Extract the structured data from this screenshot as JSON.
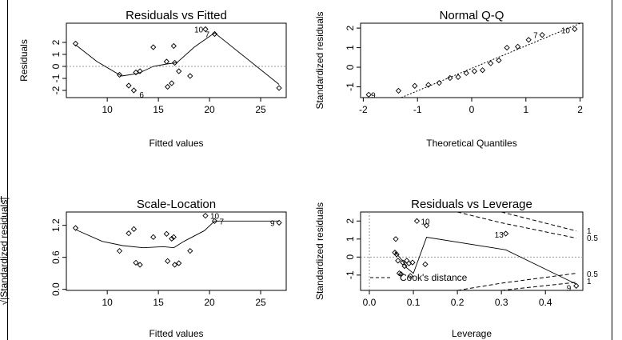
{
  "chart_data": [
    {
      "type": "scatter",
      "title": "Residuals vs Fitted",
      "xlabel": "Fitted values",
      "ylabel": "Residuals",
      "xlim": [
        6,
        27.5
      ],
      "ylim": [
        -2.6,
        3.6
      ],
      "xticks": [
        10,
        15,
        20,
        25
      ],
      "yticks": [
        -2,
        -1,
        0,
        1,
        2
      ],
      "refline_y": 0,
      "points": [
        {
          "x": 6.9,
          "y": 1.9
        },
        {
          "x": 11.2,
          "y": -0.7
        },
        {
          "x": 12.1,
          "y": -1.6
        },
        {
          "x": 12.6,
          "y": -2.0
        },
        {
          "x": 12.8,
          "y": -0.5
        },
        {
          "x": 13.2,
          "y": -0.4
        },
        {
          "x": 14.5,
          "y": 1.6
        },
        {
          "x": 15.8,
          "y": 0.4
        },
        {
          "x": 15.9,
          "y": -1.7
        },
        {
          "x": 16.3,
          "y": -1.4
        },
        {
          "x": 16.5,
          "y": 1.7
        },
        {
          "x": 16.6,
          "y": 0.3
        },
        {
          "x": 17.0,
          "y": -0.4
        },
        {
          "x": 18.1,
          "y": -0.8
        },
        {
          "x": 19.6,
          "y": 3.1
        },
        {
          "x": 20.5,
          "y": 2.7
        },
        {
          "x": 26.8,
          "y": -1.8
        }
      ],
      "smooth": [
        [
          6.9,
          1.8
        ],
        [
          9,
          0.4
        ],
        [
          11.4,
          -0.8
        ],
        [
          13,
          -0.6
        ],
        [
          14.5,
          0.0
        ],
        [
          15.8,
          0.2
        ],
        [
          16.8,
          0.3
        ],
        [
          18.5,
          1.6
        ],
        [
          20.5,
          2.8
        ],
        [
          26.8,
          -1.5
        ]
      ],
      "labels": [
        {
          "text": "10",
          "x": 19.6,
          "y": 3.1,
          "dx": -14,
          "dy": 4
        },
        {
          "text": "7",
          "x": 20.5,
          "y": 2.7,
          "dx": -12,
          "dy": 4
        },
        {
          "text": "6",
          "x": 12.6,
          "y": -2.0,
          "dx": 7,
          "dy": 9
        }
      ]
    },
    {
      "type": "scatter",
      "title": "Normal Q-Q",
      "xlabel": "Theoretical Quantiles",
      "ylabel": "Standardized residuals",
      "xlim": [
        -2.05,
        2.05
      ],
      "ylim": [
        -1.55,
        2.25
      ],
      "xticks": [
        -2,
        -1,
        0,
        1,
        2
      ],
      "yticks": [
        -1,
        0,
        1,
        2
      ],
      "refline": [
        [
          -1.3,
          -1.55
        ],
        [
          2.05,
          2.3
        ]
      ],
      "points": [
        {
          "x": -1.9,
          "y": -1.4
        },
        {
          "x": -1.35,
          "y": -1.2
        },
        {
          "x": -1.05,
          "y": -0.95
        },
        {
          "x": -0.8,
          "y": -0.9
        },
        {
          "x": -0.6,
          "y": -0.8
        },
        {
          "x": -0.4,
          "y": -0.55
        },
        {
          "x": -0.25,
          "y": -0.5
        },
        {
          "x": -0.1,
          "y": -0.3
        },
        {
          "x": 0.05,
          "y": -0.2
        },
        {
          "x": 0.2,
          "y": -0.15
        },
        {
          "x": 0.35,
          "y": 0.2
        },
        {
          "x": 0.5,
          "y": 0.35
        },
        {
          "x": 0.65,
          "y": 1.0
        },
        {
          "x": 0.85,
          "y": 1.05
        },
        {
          "x": 1.05,
          "y": 1.4
        },
        {
          "x": 1.3,
          "y": 1.65
        },
        {
          "x": 1.9,
          "y": 1.95
        }
      ],
      "labels": [
        {
          "text": "9",
          "x": -1.9,
          "y": -1.4,
          "dx": 3,
          "dy": 4
        },
        {
          "text": "7",
          "x": 1.3,
          "y": 1.65,
          "dx": -11,
          "dy": 4
        },
        {
          "text": "10",
          "x": 1.9,
          "y": 1.95,
          "dx": -17,
          "dy": 5
        }
      ]
    },
    {
      "type": "scatter",
      "title": "Scale-Location",
      "xlabel": "Fitted values",
      "ylabel": "√|Standardized residuals|",
      "xlim": [
        6,
        27.5
      ],
      "ylim": [
        -0.02,
        1.45
      ],
      "xticks": [
        10,
        15,
        20,
        25
      ],
      "yticks": [
        0.0,
        0.6,
        1.2
      ],
      "points": [
        {
          "x": 6.9,
          "y": 1.15
        },
        {
          "x": 11.2,
          "y": 0.72
        },
        {
          "x": 12.1,
          "y": 1.05
        },
        {
          "x": 12.6,
          "y": 1.13
        },
        {
          "x": 12.8,
          "y": 0.5
        },
        {
          "x": 13.2,
          "y": 0.46
        },
        {
          "x": 14.5,
          "y": 0.98
        },
        {
          "x": 15.8,
          "y": 1.04
        },
        {
          "x": 15.9,
          "y": 0.53
        },
        {
          "x": 16.3,
          "y": 0.95
        },
        {
          "x": 16.5,
          "y": 0.98
        },
        {
          "x": 16.6,
          "y": 0.46
        },
        {
          "x": 17.0,
          "y": 0.49
        },
        {
          "x": 18.1,
          "y": 0.72
        },
        {
          "x": 19.6,
          "y": 1.38
        },
        {
          "x": 20.5,
          "y": 1.28
        },
        {
          "x": 26.8,
          "y": 1.25
        }
      ],
      "smooth": [
        [
          6.9,
          1.12
        ],
        [
          9.5,
          0.9
        ],
        [
          11.5,
          0.82
        ],
        [
          13.5,
          0.78
        ],
        [
          15.5,
          0.8
        ],
        [
          16.5,
          0.78
        ],
        [
          17.5,
          0.9
        ],
        [
          19.5,
          1.1
        ],
        [
          20.5,
          1.28
        ],
        [
          26.8,
          1.28
        ]
      ],
      "labels": [
        {
          "text": "10",
          "x": 19.6,
          "y": 1.38,
          "dx": 6,
          "dy": 4
        },
        {
          "text": "7",
          "x": 20.5,
          "y": 1.28,
          "dx": 6,
          "dy": 4
        },
        {
          "text": "9",
          "x": 26.8,
          "y": 1.25,
          "dx": -11,
          "dy": 4
        }
      ]
    },
    {
      "type": "scatter",
      "title": "Residuals vs Leverage",
      "xlabel": "Leverage",
      "ylabel": "Standardized residuals",
      "xlim": [
        -0.02,
        0.485
      ],
      "ylim": [
        -1.85,
        2.5
      ],
      "xticks": [
        0.0,
        0.1,
        0.2,
        0.3,
        0.4
      ],
      "yticks": [
        -1,
        0,
        1,
        2
      ],
      "refline_y": 0,
      "refline_x": 0,
      "points": [
        {
          "x": 0.058,
          "y": 0.25
        },
        {
          "x": 0.06,
          "y": 1.0
        },
        {
          "x": 0.062,
          "y": 0.15
        },
        {
          "x": 0.065,
          "y": -0.2
        },
        {
          "x": 0.068,
          "y": -0.9
        },
        {
          "x": 0.072,
          "y": -0.95
        },
        {
          "x": 0.076,
          "y": -0.3
        },
        {
          "x": 0.08,
          "y": -0.5
        },
        {
          "x": 0.085,
          "y": -0.2
        },
        {
          "x": 0.09,
          "y": -0.35
        },
        {
          "x": 0.093,
          "y": -1.05
        },
        {
          "x": 0.098,
          "y": -0.3
        },
        {
          "x": 0.108,
          "y": 2.0
        },
        {
          "x": 0.127,
          "y": -0.4
        },
        {
          "x": 0.13,
          "y": 1.75
        },
        {
          "x": 0.31,
          "y": 1.3
        },
        {
          "x": 0.47,
          "y": -1.6
        }
      ],
      "smooth": [
        [
          0.058,
          0.3
        ],
        [
          0.075,
          -0.2
        ],
        [
          0.085,
          -0.6
        ],
        [
          0.1,
          -0.9
        ],
        [
          0.13,
          1.1
        ],
        [
          0.31,
          0.4
        ],
        [
          0.47,
          -1.5
        ]
      ],
      "cook_upper": {
        "p05": [
          [
            0.2,
            2.5
          ],
          [
            0.3,
            1.9
          ],
          [
            0.47,
            1.05
          ]
        ],
        "p1": [
          [
            0.3,
            2.5
          ],
          [
            0.47,
            1.45
          ]
        ]
      },
      "cook_lower": {
        "p05": [
          [
            0.2,
            -1.85
          ],
          [
            0.3,
            -1.45
          ],
          [
            0.47,
            -0.9
          ]
        ],
        "p1": [
          [
            0.3,
            -1.85
          ],
          [
            0.47,
            -1.4
          ]
        ]
      },
      "contour_labels": [
        "1",
        "0.5",
        "0.5",
        "1"
      ],
      "legend_text": "Cook's distance",
      "labels": [
        {
          "text": "10",
          "x": 0.108,
          "y": 2.0,
          "dx": 5,
          "dy": 4
        },
        {
          "text": "13",
          "x": 0.31,
          "y": 1.3,
          "dx": -14,
          "dy": 5
        },
        {
          "text": "9",
          "x": 0.47,
          "y": -1.6,
          "dx": -12,
          "dy": 6
        }
      ]
    }
  ]
}
